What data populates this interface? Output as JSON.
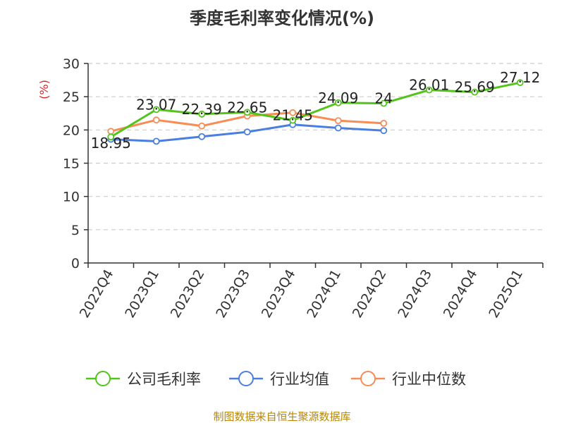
{
  "chart_data": {
    "type": "line",
    "title": "季度毛利率变化情况(%)",
    "ylabel": "(%)",
    "ylim": [
      0,
      30
    ],
    "yticks": [
      0,
      5,
      10,
      15,
      20,
      25,
      30
    ],
    "grid": true,
    "legend_position": "bottom",
    "categories": [
      "2022Q4",
      "2023Q1",
      "2023Q2",
      "2023Q3",
      "2023Q4",
      "2024Q1",
      "2024Q2",
      "2024Q3",
      "2024Q4",
      "2025Q1"
    ],
    "series": [
      {
        "name": "公司毛利率",
        "color": "#52c41a",
        "values": [
          18.95,
          23.07,
          22.39,
          22.65,
          21.45,
          24.09,
          24,
          26.01,
          25.69,
          27.12
        ],
        "labels": [
          "18.95",
          "23.07",
          "22.39",
          "22.65",
          "21.45",
          "24.09",
          "24",
          "26.01",
          "25.69",
          "27.12"
        ]
      },
      {
        "name": "行业均值",
        "color": "#4a7fe0",
        "values": [
          18.6,
          18.3,
          19.0,
          19.7,
          20.8,
          20.3,
          19.9,
          null,
          null,
          null
        ]
      },
      {
        "name": "行业中位数",
        "color": "#f78c55",
        "values": [
          19.8,
          21.5,
          20.6,
          22.1,
          22.6,
          21.4,
          21.0,
          null,
          null,
          null
        ]
      }
    ]
  },
  "source": "制图数据来自恒生聚源数据库"
}
